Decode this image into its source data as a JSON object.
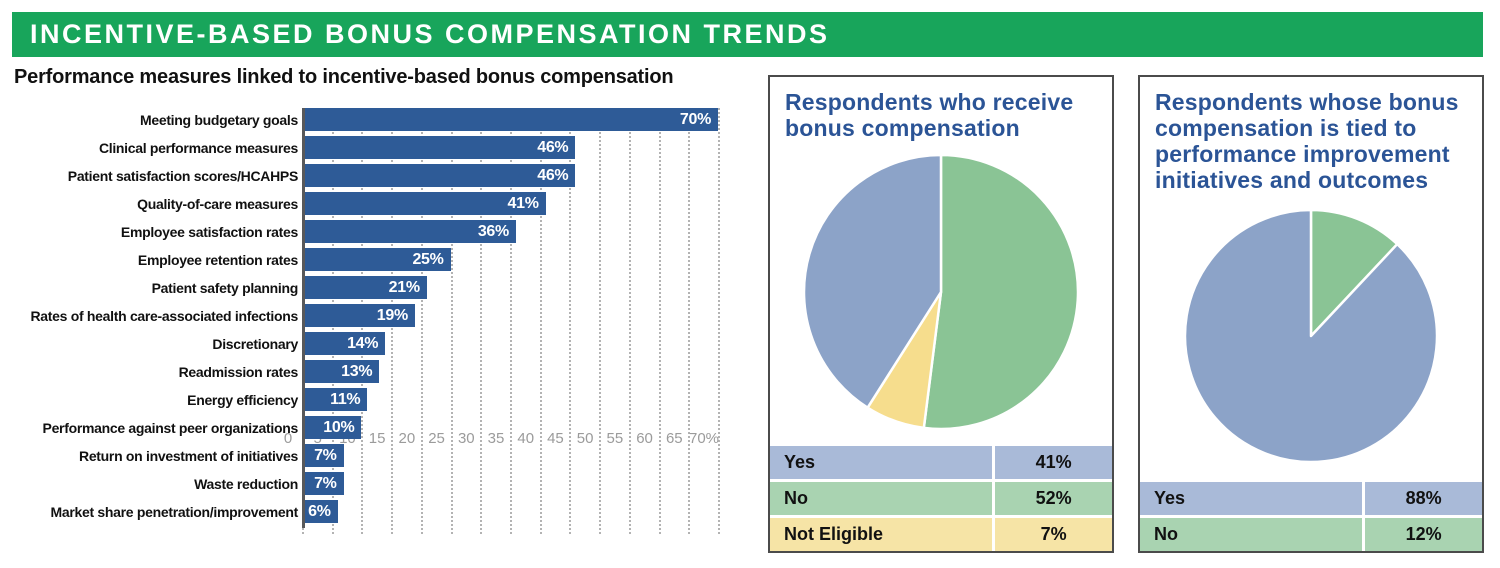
{
  "banner": {
    "title": "INCENTIVE-BASED BONUS COMPENSATION TRENDS",
    "bg_color": "#18a55b",
    "text_color": "#ffffff"
  },
  "colors": {
    "bar_blue": "#2e5b97",
    "pie_blue": "#8ca3c8",
    "pie_green": "#8ac495",
    "pie_yellow": "#f6dd8d",
    "row_blue": "#a9bad8",
    "row_green": "#a9d3b1",
    "row_yellow": "#f6e4a6",
    "panel_title_blue": "#2b5496",
    "axis_gray": "#9b9b9b"
  },
  "chart_data": [
    {
      "type": "bar",
      "orientation": "horizontal",
      "title": "Performance measures linked to incentive-based bonus compensation",
      "categories": [
        "Meeting budgetary goals",
        "Clinical performance measures",
        "Patient satisfaction scores/HCAHPS",
        "Quality-of-care measures",
        "Employee satisfaction rates",
        "Employee retention rates",
        "Patient safety planning",
        "Rates of health care-associated infections",
        "Discretionary",
        "Readmission rates",
        "Energy efficiency",
        "Performance against peer organizations",
        "Return on investment of initiatives",
        "Waste reduction",
        "Market share penetration/improvement"
      ],
      "values": [
        70,
        46,
        46,
        41,
        36,
        25,
        21,
        19,
        14,
        13,
        11,
        10,
        7,
        7,
        6
      ],
      "value_labels": [
        "70%",
        "46%",
        "46%",
        "41%",
        "36%",
        "25%",
        "21%",
        "19%",
        "14%",
        "13%",
        "11%",
        "10%",
        "7%",
        "7%",
        "6%"
      ],
      "xlim": [
        0,
        70
      ],
      "xticks": [
        0,
        5,
        10,
        15,
        20,
        25,
        30,
        35,
        40,
        45,
        50,
        55,
        60,
        65,
        70
      ],
      "xtick_labels": [
        "0",
        "5",
        "10",
        "15",
        "20",
        "25",
        "30",
        "35",
        "40",
        "45",
        "50",
        "55",
        "60",
        "65",
        "70%"
      ],
      "grid": "dotted-vertical",
      "bar_color": "#2e5b97"
    },
    {
      "type": "pie",
      "title": "Respondents who receive bonus compensation",
      "start": "top",
      "clockwise": true,
      "slices": [
        {
          "label": "No",
          "value": 52,
          "color": "#8ac495"
        },
        {
          "label": "Not Eligible",
          "value": 7,
          "color": "#f6dd8d"
        },
        {
          "label": "Yes",
          "value": 41,
          "color": "#8ca3c8"
        }
      ],
      "legend": [
        {
          "label": "Yes",
          "value_label": "41%",
          "row_color": "#a9bad8"
        },
        {
          "label": "No",
          "value_label": "52%",
          "row_color": "#a9d3b1"
        },
        {
          "label": "Not Eligible",
          "value_label": "7%",
          "row_color": "#f6e4a6"
        }
      ]
    },
    {
      "type": "pie",
      "title": "Respondents whose bonus compensation is tied to performance improvement initiatives and outcomes",
      "start": "top",
      "clockwise": true,
      "slices": [
        {
          "label": "No",
          "value": 12,
          "color": "#8ac495"
        },
        {
          "label": "Yes",
          "value": 88,
          "color": "#8ca3c8"
        }
      ],
      "legend": [
        {
          "label": "Yes",
          "value_label": "88%",
          "row_color": "#a9bad8"
        },
        {
          "label": "No",
          "value_label": "12%",
          "row_color": "#a9d3b1"
        }
      ]
    }
  ]
}
